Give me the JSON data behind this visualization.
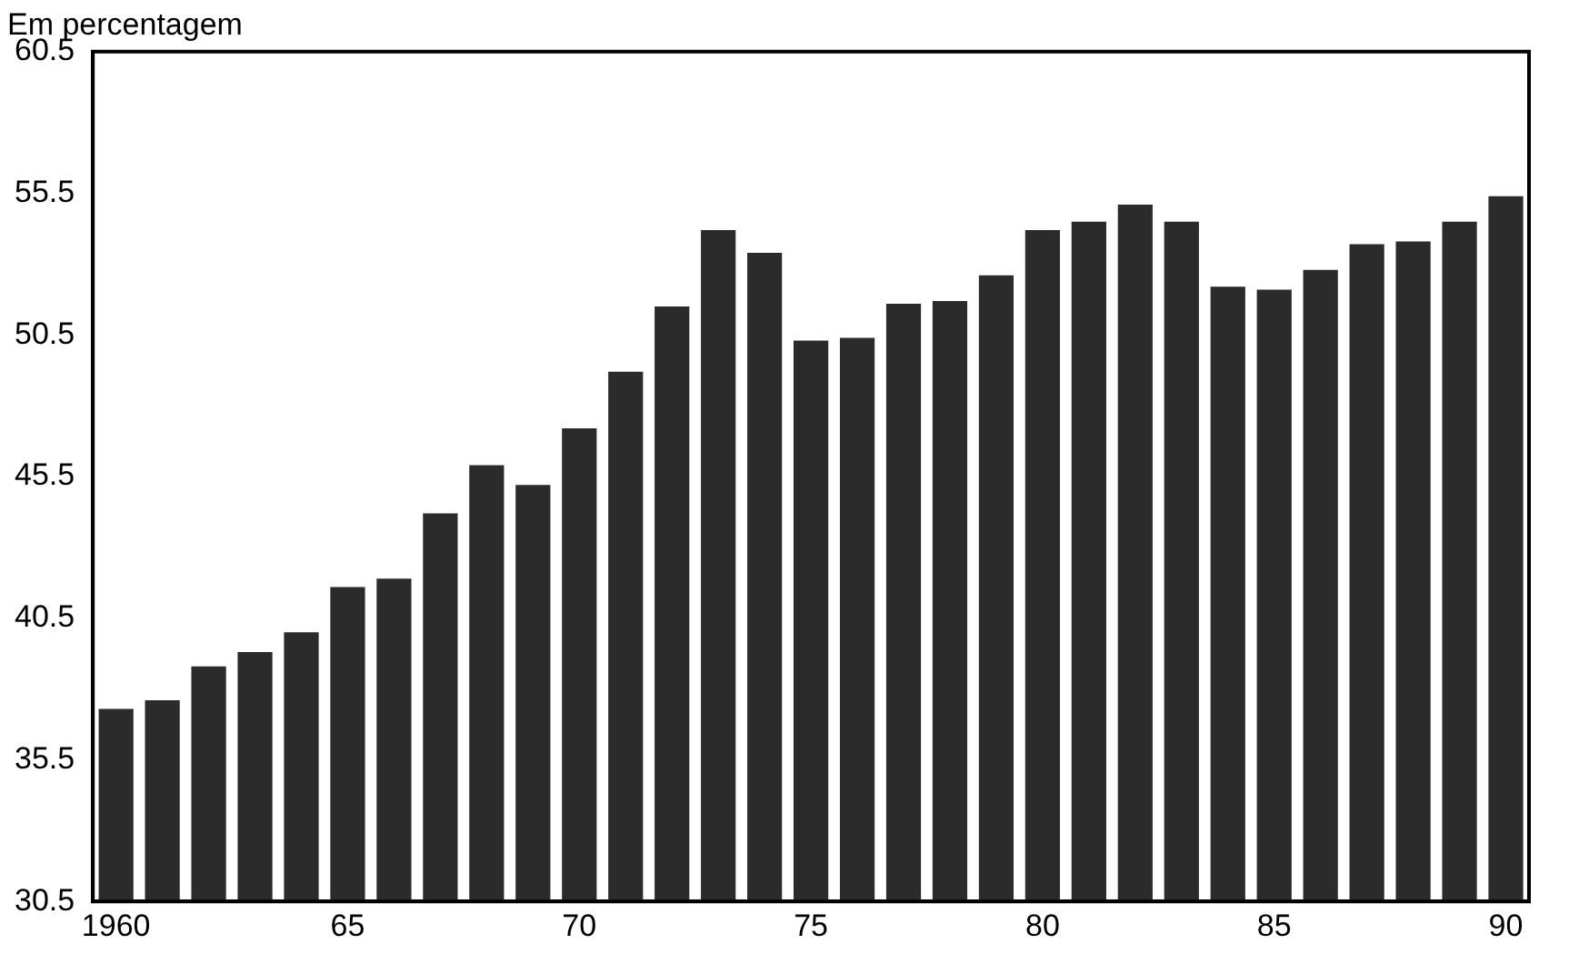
{
  "chart_data": {
    "type": "bar",
    "ylabel": "Em percentagem",
    "categories": [
      "1960",
      null,
      null,
      null,
      null,
      "65",
      null,
      null,
      null,
      null,
      "70",
      null,
      null,
      null,
      null,
      "75",
      null,
      null,
      null,
      null,
      "80",
      null,
      null,
      null,
      null,
      "85",
      null,
      null,
      null,
      null,
      "90"
    ],
    "values": [
      37.3,
      37.6,
      38.8,
      39.3,
      40.0,
      41.6,
      41.9,
      44.2,
      45.9,
      45.2,
      47.2,
      49.2,
      51.5,
      54.2,
      53.4,
      50.3,
      50.4,
      51.6,
      51.7,
      52.6,
      54.2,
      54.5,
      55.1,
      54.5,
      52.2,
      52.1,
      52.8,
      53.7,
      53.8,
      54.5,
      55.4
    ],
    "color": "#2b2b2b",
    "ylim": [
      30.5,
      60.5
    ],
    "yticks": [
      30.5,
      35.5,
      40.5,
      45.5,
      50.5,
      55.5,
      60.5
    ],
    "grid": false,
    "legend": false
  }
}
